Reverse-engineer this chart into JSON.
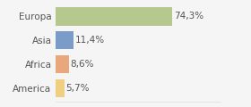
{
  "categories": [
    "Europa",
    "Asia",
    "Africa",
    "America"
  ],
  "values": [
    74.3,
    11.4,
    8.6,
    5.7
  ],
  "labels": [
    "74,3%",
    "11,4%",
    "8,6%",
    "5,7%"
  ],
  "bar_colors": [
    "#b5c98e",
    "#7b9bc8",
    "#e8a87c",
    "#f0d080"
  ],
  "background_color": "#f5f5f5",
  "xlim": [
    0,
    105
  ],
  "bar_height": 0.75,
  "label_fontsize": 7.5,
  "tick_fontsize": 7.5,
  "grid_color": "#dddddd",
  "text_color": "#555555"
}
